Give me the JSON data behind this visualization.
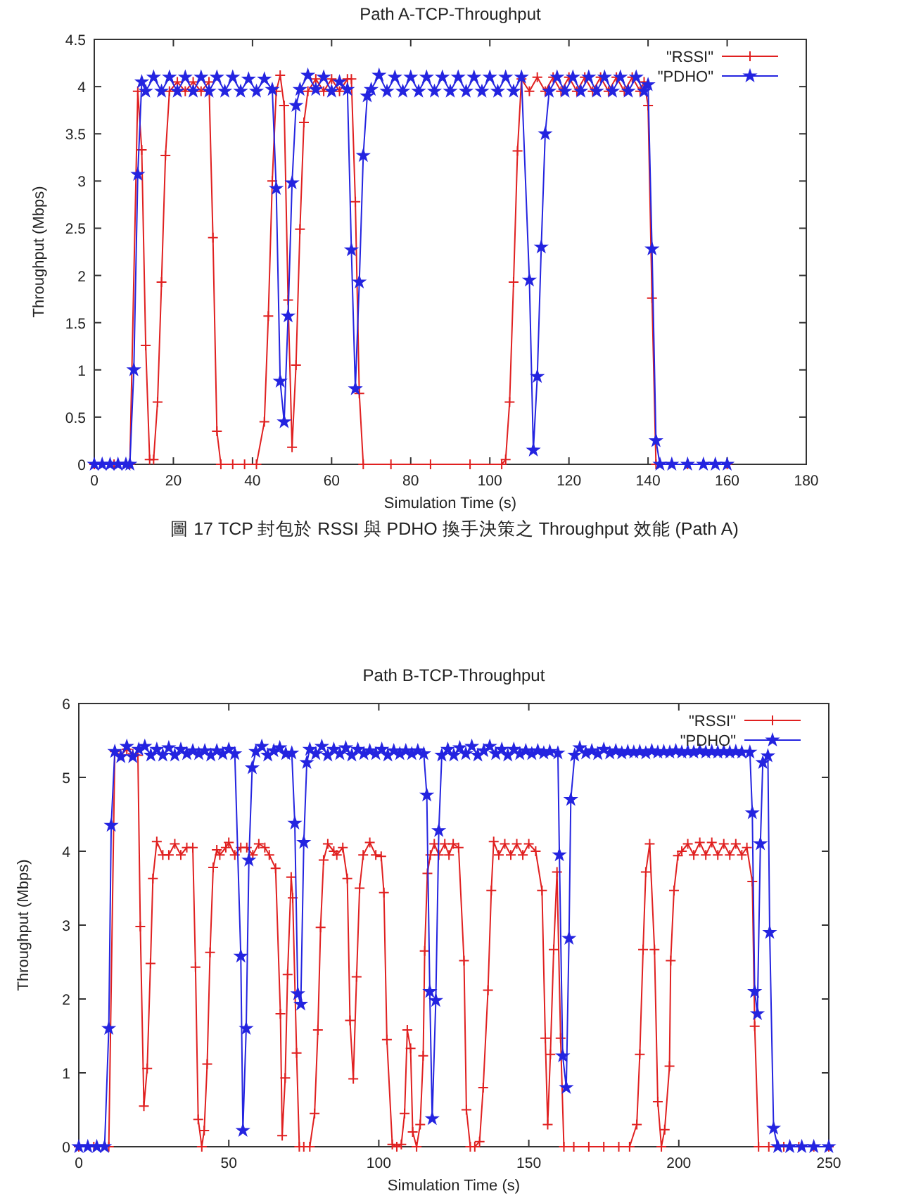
{
  "chart_data": [
    {
      "type": "line",
      "title": "Path A-TCP-Throughput",
      "xlabel": "Simulation Time (s)",
      "ylabel": "Throughput (Mbps)",
      "xlim": [
        0,
        180
      ],
      "xticks": [
        0,
        20,
        40,
        60,
        80,
        100,
        120,
        140,
        160,
        180
      ],
      "ylim": [
        0,
        4.5
      ],
      "yticks": [
        0,
        0.5,
        1,
        1.5,
        2,
        2.5,
        3,
        3.5,
        4,
        4.5
      ],
      "grid": false,
      "legend": "top right",
      "line_style": "solid",
      "annotations": [
        "圖 17 TCP 封包於 RSSI 與 PDHO 換手決策之 Throughput 效能 (Path A)"
      ],
      "series": [
        {
          "name": "\"RSSI\"",
          "color": "#e02020",
          "marker": "cross",
          "x": [
            0,
            5,
            9,
            11,
            12,
            13,
            14,
            15,
            16,
            17,
            18,
            19,
            21,
            23,
            25,
            27,
            29,
            30,
            31,
            32,
            35,
            38,
            41,
            43,
            44,
            45,
            46,
            47,
            48,
            49,
            50,
            51,
            52,
            53,
            54,
            56,
            58,
            60,
            62,
            64,
            65,
            66,
            67,
            68,
            75,
            85,
            95,
            103,
            104,
            105,
            106,
            107,
            108,
            110,
            112,
            114,
            116,
            118,
            120,
            122,
            124,
            126,
            128,
            130,
            132,
            134,
            136,
            138,
            139,
            140,
            141,
            142,
            150,
            160
          ],
          "values": [
            0,
            0,
            0,
            3.95,
            3.33,
            1.26,
            0.05,
            0.05,
            0.66,
            1.93,
            3.27,
            3.95,
            4.05,
            3.95,
            4.05,
            3.95,
            4.05,
            2.4,
            0.35,
            0,
            0,
            0,
            0,
            0.45,
            1.57,
            3.0,
            3.95,
            4.12,
            3.8,
            1.74,
            0.18,
            1.05,
            2.49,
            3.62,
            3.95,
            4.08,
            3.95,
            4.08,
            3.95,
            4.08,
            4.08,
            2.78,
            0.75,
            0,
            0,
            0,
            0,
            0,
            0.05,
            0.66,
            1.93,
            3.32,
            4.08,
            3.95,
            4.1,
            3.95,
            4.1,
            3.95,
            4.1,
            3.95,
            4.1,
            3.95,
            4.1,
            3.95,
            4.1,
            3.95,
            4.1,
            3.95,
            4.05,
            3.8,
            1.76,
            0,
            0,
            0
          ]
        },
        {
          "name": "\"PDHO\"",
          "color": "#2424e0",
          "marker": "star",
          "x": [
            0,
            2,
            4,
            6,
            8,
            9,
            10,
            11,
            12,
            13,
            15,
            17,
            19,
            21,
            23,
            25,
            27,
            29,
            31,
            33,
            35,
            37,
            39,
            41,
            43,
            45,
            46,
            47,
            48,
            49,
            50,
            51,
            52,
            54,
            56,
            58,
            60,
            62,
            64,
            65,
            66,
            67,
            68,
            69,
            70,
            72,
            74,
            76,
            78,
            80,
            82,
            84,
            86,
            88,
            90,
            92,
            94,
            96,
            98,
            100,
            102,
            104,
            106,
            108,
            110,
            111,
            112,
            113,
            114,
            115,
            117,
            119,
            121,
            123,
            125,
            127,
            129,
            131,
            133,
            135,
            137,
            139,
            140,
            141,
            142,
            143,
            146,
            150,
            154,
            157,
            160
          ],
          "values": [
            0,
            0,
            0,
            0,
            0,
            0,
            1.0,
            3.07,
            4.05,
            3.95,
            4.1,
            3.95,
            4.1,
            3.95,
            4.1,
            3.95,
            4.1,
            3.95,
            4.1,
            3.95,
            4.1,
            3.95,
            4.08,
            3.95,
            4.08,
            3.97,
            2.92,
            0.88,
            0.45,
            1.57,
            2.98,
            3.8,
            3.97,
            4.12,
            3.97,
            4.1,
            3.95,
            4.05,
            3.97,
            2.27,
            0.8,
            1.93,
            3.27,
            3.9,
            3.97,
            4.12,
            3.95,
            4.1,
            3.95,
            4.1,
            3.95,
            4.1,
            3.95,
            4.1,
            3.95,
            4.1,
            3.95,
            4.1,
            3.95,
            4.1,
            3.95,
            4.1,
            3.95,
            4.1,
            1.95,
            0.15,
            0.93,
            2.3,
            3.5,
            3.95,
            4.1,
            3.95,
            4.1,
            3.95,
            4.1,
            3.95,
            4.1,
            3.95,
            4.1,
            3.95,
            4.1,
            3.95,
            4.02,
            2.28,
            0.25,
            0,
            0,
            0,
            0,
            0,
            0
          ]
        }
      ]
    },
    {
      "type": "line",
      "title": "Path B-TCP-Throughput",
      "xlabel": "Simulation Time (s)",
      "ylabel": "Throughput (Mbps)",
      "xlim": [
        0,
        250
      ],
      "xticks": [
        0,
        50,
        100,
        150,
        200,
        250
      ],
      "ylim": [
        0,
        6
      ],
      "yticks": [
        0,
        1,
        2,
        3,
        4,
        5,
        6
      ],
      "grid": false,
      "legend": "top right",
      "line_style": "solid",
      "series": [
        {
          "name": "\"RSSI\"",
          "color": "#e02020",
          "marker": "cross",
          "x": [
            0,
            5,
            10,
            12,
            14,
            16,
            18,
            19.7,
            20.5,
            21.7,
            22.8,
            23.9,
            24.7,
            26,
            28,
            30,
            32,
            34,
            36,
            38,
            38.9,
            39.8,
            41,
            41.8,
            42.8,
            43.75,
            44.8,
            46,
            47,
            49,
            50,
            52,
            54,
            56,
            58,
            60,
            62,
            63.5,
            65.6,
            67.2,
            67.8,
            68.8,
            69.6,
            70.8,
            71.3,
            72.6,
            73.5,
            75,
            77,
            78.6,
            79.7,
            80.6,
            81.6,
            83,
            85,
            86,
            88,
            89.5,
            90.4,
            91.5,
            92.6,
            93.6,
            94.8,
            97,
            99,
            100.8,
            101.7,
            102.7,
            104.5,
            106,
            107.5,
            108.6,
            109.5,
            110.6,
            111.3,
            112.6,
            113.8,
            114.8,
            115.3,
            116.2,
            117.2,
            118.5,
            120,
            122,
            123.4,
            124.8,
            126.6,
            128.4,
            129.2,
            130.5,
            132,
            133.6,
            134.8,
            136.4,
            137.5,
            138.3,
            140,
            142,
            144,
            146,
            148,
            150,
            152.3,
            154.4,
            155.5,
            156.3,
            157.2,
            158.3,
            159.4,
            160.6,
            161.7,
            165,
            170,
            175,
            180,
            183.6,
            186,
            187,
            188.1,
            189,
            190.3,
            191.9,
            193,
            194.2,
            195.3,
            196.9,
            197.3,
            198.4,
            199.7,
            201,
            203,
            205,
            207,
            209,
            211,
            213,
            215,
            217,
            219,
            221,
            222.7,
            224.5,
            225.3,
            226.6,
            230,
            235,
            240,
            245,
            250
          ],
          "values": [
            0,
            0,
            0,
            5.35,
            5.3,
            5.38,
            5.32,
            5.3,
            2.98,
            0.55,
            1.06,
            2.48,
            3.63,
            4.13,
            3.95,
            3.95,
            4.1,
            3.95,
            4.05,
            4.05,
            2.43,
            0.37,
            0,
            0.22,
            1.12,
            2.63,
            3.78,
            4.02,
            3.95,
            4.05,
            4.12,
            3.95,
            4.05,
            4.05,
            3.95,
            4.1,
            4.05,
            3.95,
            3.77,
            1.8,
            0.15,
            0.93,
            2.33,
            3.65,
            3.37,
            1.27,
            0,
            0,
            0,
            0.45,
            1.58,
            2.97,
            3.88,
            4.1,
            4.0,
            3.95,
            4.05,
            3.63,
            1.71,
            0.92,
            2.3,
            3.5,
            3.95,
            4.12,
            3.95,
            3.93,
            3.44,
            1.45,
            0.03,
            0,
            0.03,
            0.45,
            1.58,
            1.33,
            0.2,
            0,
            0.3,
            1.23,
            2.65,
            3.7,
            3.95,
            4.1,
            3.95,
            4.1,
            3.95,
            4.1,
            4.05,
            2.52,
            0.5,
            0,
            0,
            0.07,
            0.8,
            2.12,
            3.47,
            4.13,
            3.95,
            4.1,
            3.95,
            4.1,
            3.95,
            4.1,
            4.0,
            3.47,
            1.47,
            0.3,
            1.25,
            2.67,
            3.72,
            1.47,
            0,
            0,
            0,
            0,
            0,
            0,
            0.3,
            1.25,
            2.67,
            3.72,
            4.1,
            2.67,
            0.61,
            0,
            0.23,
            1.09,
            2.52,
            3.47,
            3.94,
            4.0,
            4.1,
            3.95,
            4.12,
            3.95,
            4.12,
            3.95,
            4.1,
            3.95,
            4.1,
            3.95,
            4.05,
            3.59,
            1.63,
            0,
            0,
            0,
            0,
            0,
            0
          ]
        },
        {
          "name": "\"PDHO\"",
          "color": "#2424e0",
          "marker": "star",
          "x": [
            0,
            3,
            6,
            8.6,
            10,
            10.8,
            12,
            14,
            16,
            18,
            20,
            22,
            24,
            26,
            28,
            30,
            32,
            34,
            36,
            38,
            40,
            42,
            44,
            46,
            48,
            50,
            52,
            54,
            54.7,
            55.8,
            56.7,
            57.8,
            59,
            61,
            63,
            65,
            67,
            69,
            71,
            72,
            73,
            74,
            75,
            76,
            77,
            79,
            81,
            83,
            85,
            87,
            89,
            91,
            93,
            95,
            97,
            99,
            101,
            103,
            105,
            107,
            109,
            111,
            113,
            115,
            116,
            117,
            117.8,
            119,
            120,
            121,
            123,
            125,
            127,
            129,
            131,
            133,
            135,
            137,
            139,
            141,
            143,
            145,
            147,
            149,
            151,
            153,
            155,
            157,
            159.7,
            160.2,
            161.3,
            162.5,
            163.4,
            164,
            165.3,
            167,
            169,
            171,
            173,
            175,
            177,
            179,
            181,
            183,
            185,
            187,
            189,
            191,
            193,
            195,
            197,
            199,
            201,
            203,
            205,
            207,
            209,
            211,
            213,
            215,
            217,
            219,
            221,
            223.7,
            224.5,
            225.3,
            226.2,
            227.2,
            228,
            229.7,
            230.3,
            231.6,
            233,
            237,
            241,
            245,
            250
          ],
          "values": [
            0,
            0,
            0,
            0,
            1.6,
            4.35,
            5.35,
            5.28,
            5.42,
            5.28,
            5.38,
            5.42,
            5.3,
            5.38,
            5.3,
            5.4,
            5.3,
            5.38,
            5.32,
            5.36,
            5.32,
            5.36,
            5.3,
            5.36,
            5.32,
            5.38,
            5.32,
            2.58,
            0.22,
            1.6,
            3.88,
            5.13,
            5.35,
            5.42,
            5.3,
            5.36,
            5.4,
            5.32,
            5.33,
            4.38,
            2.07,
            1.93,
            4.12,
            5.2,
            5.38,
            5.32,
            5.42,
            5.3,
            5.38,
            5.32,
            5.4,
            5.3,
            5.38,
            5.32,
            5.36,
            5.32,
            5.38,
            5.3,
            5.36,
            5.32,
            5.36,
            5.32,
            5.36,
            5.32,
            4.76,
            2.1,
            0.38,
            1.98,
            4.28,
            5.3,
            5.38,
            5.3,
            5.4,
            5.32,
            5.42,
            5.3,
            5.36,
            5.42,
            5.32,
            5.38,
            5.3,
            5.38,
            5.32,
            5.36,
            5.32,
            5.36,
            5.33,
            5.35,
            5.33,
            3.95,
            1.23,
            0.8,
            2.82,
            4.7,
            5.3,
            5.4,
            5.33,
            5.36,
            5.32,
            5.38,
            5.33,
            5.36,
            5.33,
            5.35,
            5.34,
            5.35,
            5.33,
            5.36,
            5.34,
            5.35,
            5.34,
            5.36,
            5.34,
            5.35,
            5.34,
            5.36,
            5.34,
            5.35,
            5.34,
            5.35,
            5.34,
            5.35,
            5.34,
            5.34,
            4.52,
            2.1,
            1.8,
            4.1,
            5.2,
            5.29,
            2.9,
            0.25,
            0,
            0,
            0,
            0,
            0
          ]
        }
      ]
    }
  ]
}
